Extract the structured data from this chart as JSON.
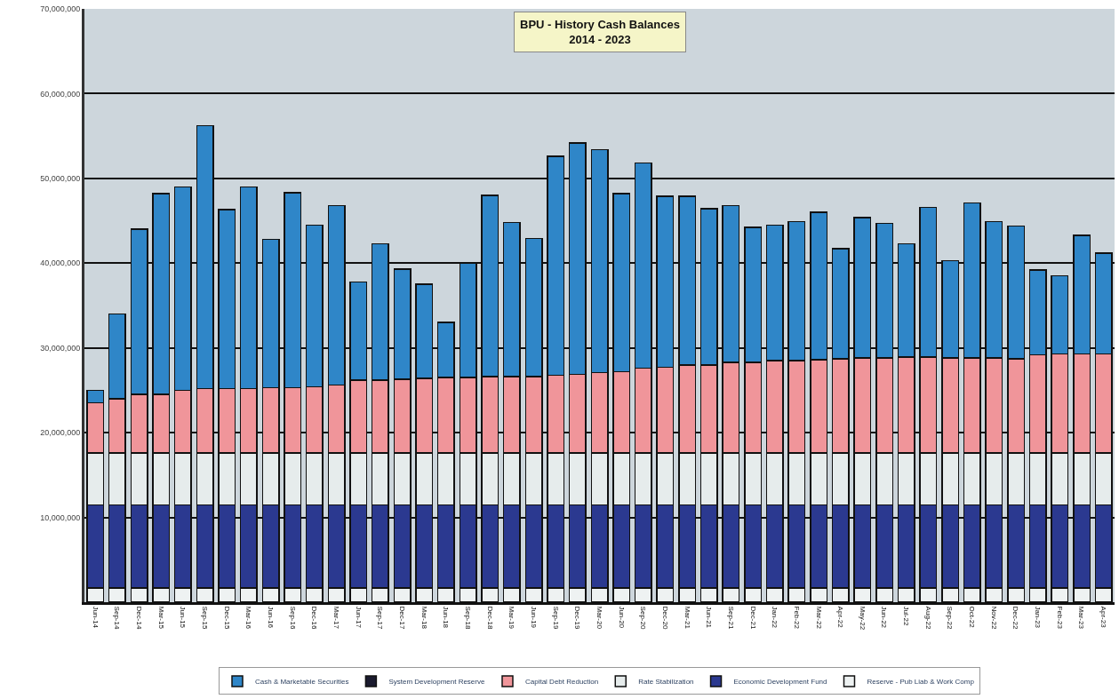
{
  "chart_data": {
    "type": "bar",
    "stacked": true,
    "title": "BPU - History Cash Balances\n2014 - 2023",
    "categories": [
      "Jun-14",
      "Sep-14",
      "Dec-14",
      "Mar-15",
      "Jun-15",
      "Sep-15",
      "Dec-15",
      "Mar-16",
      "Jun-16",
      "Sep-16",
      "Dec-16",
      "Mar-17",
      "Jun-17",
      "Sep-17",
      "Dec-17",
      "Mar-18",
      "Jun-18",
      "Sep-18",
      "Dec-18",
      "Mar-19",
      "Jun-19",
      "Sep-19",
      "Dec-19",
      "Mar-20",
      "Jun-20",
      "Sep-20",
      "Dec-20",
      "Mar-21",
      "Jun-21",
      "Sep-21",
      "Dec-21",
      "Jan-22",
      "Feb-22",
      "Mar-22",
      "Apr-22",
      "May-22",
      "Jun-22",
      "Jul-22",
      "Aug-22",
      "Sep-22",
      "Oct-22",
      "Nov-22",
      "Dec-22",
      "Jan-23",
      "Feb-23",
      "Mar-23",
      "Apr-23"
    ],
    "series": [
      {
        "name": "Reserve - Pub Liab & Work Comp",
        "color": "#eef2f2",
        "values": [
          1700000,
          1700000,
          1700000,
          1700000,
          1700000,
          1700000,
          1700000,
          1700000,
          1700000,
          1700000,
          1700000,
          1700000,
          1700000,
          1700000,
          1700000,
          1700000,
          1700000,
          1700000,
          1700000,
          1700000,
          1700000,
          1700000,
          1700000,
          1700000,
          1700000,
          1700000,
          1700000,
          1700000,
          1700000,
          1700000,
          1700000,
          1700000,
          1700000,
          1700000,
          1700000,
          1700000,
          1700000,
          1700000,
          1700000,
          1700000,
          1700000,
          1700000,
          1700000,
          1700000,
          1700000,
          1700000,
          1700000
        ]
      },
      {
        "name": "Economic Development Fund",
        "color": "#2b3990",
        "values": [
          9800000,
          9800000,
          9800000,
          9800000,
          9800000,
          9800000,
          9800000,
          9800000,
          9800000,
          9800000,
          9800000,
          9800000,
          9800000,
          9800000,
          9800000,
          9800000,
          9800000,
          9800000,
          9800000,
          9800000,
          9800000,
          9800000,
          9800000,
          9800000,
          9800000,
          9800000,
          9800000,
          9800000,
          9800000,
          9800000,
          9800000,
          9800000,
          9800000,
          9800000,
          9800000,
          9800000,
          9800000,
          9800000,
          9800000,
          9800000,
          9800000,
          9800000,
          9800000,
          9800000,
          9800000,
          9800000,
          9800000
        ]
      },
      {
        "name": "Rate Stabilization",
        "color": "#e6ecec",
        "values": [
          6100000,
          6100000,
          6100000,
          6100000,
          6100000,
          6100000,
          6100000,
          6100000,
          6100000,
          6100000,
          6100000,
          6100000,
          6100000,
          6100000,
          6100000,
          6100000,
          6100000,
          6100000,
          6100000,
          6100000,
          6100000,
          6100000,
          6100000,
          6100000,
          6100000,
          6100000,
          6100000,
          6100000,
          6100000,
          6100000,
          6100000,
          6100000,
          6100000,
          6100000,
          6100000,
          6100000,
          6100000,
          6100000,
          6100000,
          6100000,
          6100000,
          6100000,
          6100000,
          6100000,
          6100000,
          6100000,
          6100000
        ]
      },
      {
        "name": "Capital Debt Reduction",
        "color": "#f0959a",
        "values": [
          5900000,
          6400000,
          6900000,
          6900000,
          7400000,
          7600000,
          7600000,
          7600000,
          7700000,
          7700000,
          7800000,
          8000000,
          8600000,
          8600000,
          8700000,
          8800000,
          8900000,
          8900000,
          9000000,
          9000000,
          9000000,
          9200000,
          9300000,
          9500000,
          9600000,
          10000000,
          10100000,
          10400000,
          10400000,
          10700000,
          10700000,
          10900000,
          10900000,
          11000000,
          11100000,
          11200000,
          11200000,
          11300000,
          11300000,
          11200000,
          11200000,
          11200000,
          11100000,
          11600000,
          11700000,
          11700000,
          11700000
        ]
      },
      {
        "name": "System Development Reserve",
        "color": "#1a1a2e",
        "values": [
          null,
          null,
          null,
          null,
          null,
          null,
          null,
          null,
          null,
          null,
          null,
          null,
          null,
          null,
          null,
          null,
          null,
          null,
          null,
          null,
          null,
          null,
          null,
          null,
          null,
          null,
          null,
          null,
          null,
          null,
          null,
          null,
          null,
          null,
          null,
          null,
          null,
          null,
          null,
          null,
          null,
          null,
          null,
          null,
          null,
          null,
          null
        ]
      },
      {
        "name": "Cash & Marketable Securities",
        "color": "#2f86c8",
        "values": [
          1500000,
          10000000,
          19500000,
          23700000,
          24000000,
          31000000,
          21100000,
          23800000,
          17500000,
          23000000,
          19100000,
          21200000,
          11600000,
          16100000,
          13000000,
          11100000,
          6500000,
          13500000,
          21400000,
          18200000,
          16300000,
          25800000,
          27300000,
          26300000,
          21000000,
          24200000,
          20200000,
          19900000,
          18400000,
          18500000,
          15900000,
          16000000,
          16400000,
          17400000,
          13000000,
          16600000,
          15900000,
          13400000,
          17700000,
          11500000,
          18300000,
          16100000,
          15700000,
          10000000,
          9200000,
          14000000,
          11900000
        ]
      }
    ],
    "ylim": [
      0,
      70000000
    ],
    "yticks": [
      {
        "value": 10000000,
        "label": "10,000,000"
      },
      {
        "value": 20000000,
        "label": "20,000,000"
      },
      {
        "value": 30000000,
        "label": "30,000,000"
      },
      {
        "value": 40000000,
        "label": "40,000,000"
      },
      {
        "value": 50000000,
        "label": "50,000,000"
      },
      {
        "value": 60000000,
        "label": "60,000,000"
      },
      {
        "value": 70000000,
        "label": "70,000,000"
      }
    ],
    "grid": "y",
    "legend": "bottom"
  }
}
